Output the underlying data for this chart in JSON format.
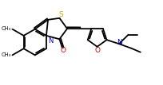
{
  "bg_color": "#ffffff",
  "bond_color": "#000000",
  "atom_colors": {
    "N": "#0000cd",
    "O": "#cc0000",
    "S": "#ccaa00",
    "C": "#000000"
  },
  "line_width": 1.3,
  "figsize": [
    2.04,
    1.07
  ],
  "dpi": 100
}
